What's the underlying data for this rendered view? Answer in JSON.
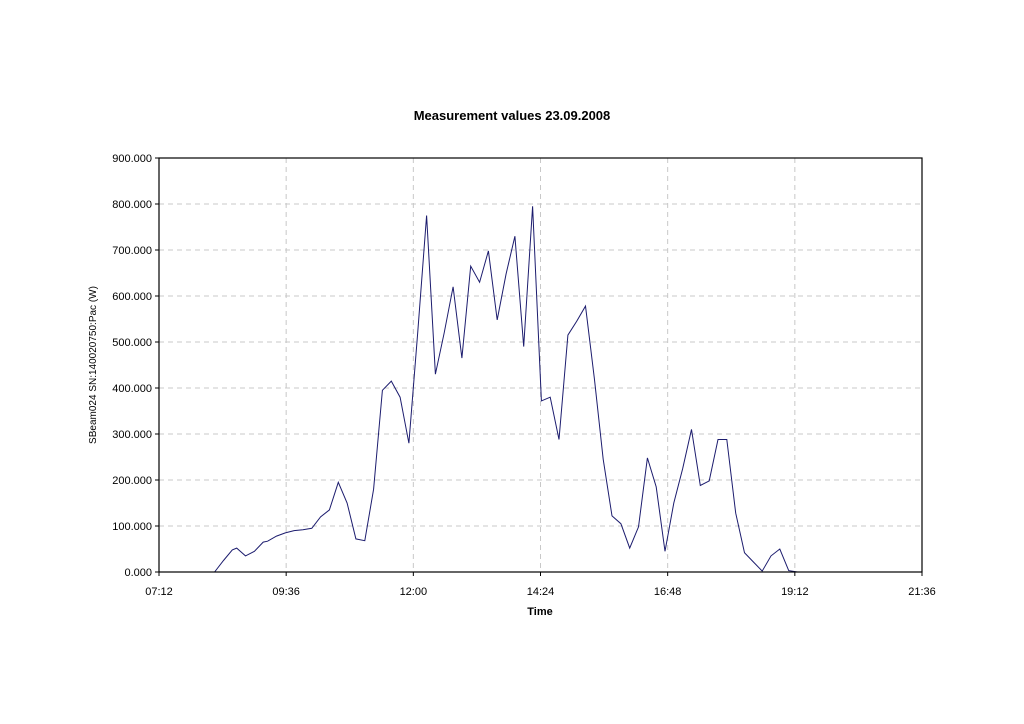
{
  "chart_data": {
    "type": "line",
    "title": "Measurement values 23.09.2008",
    "xlabel": "Time",
    "ylabel": "SBeam024 SN:140020750:Pac (W)",
    "xlim": [
      "07:12",
      "21:36"
    ],
    "ylim": [
      0,
      900
    ],
    "x_ticks": [
      "07:12",
      "09:36",
      "12:00",
      "14:24",
      "16:48",
      "19:12",
      "21:36"
    ],
    "y_ticks": [
      "0.000",
      "100.000",
      "200.000",
      "300.000",
      "400.000",
      "500.000",
      "600.000",
      "700.000",
      "800.000",
      "900.000"
    ],
    "grid": true,
    "series_color": "#1c1c6e",
    "series": [
      {
        "x": [
          "08:15",
          "08:25",
          "08:35",
          "08:40",
          "08:50",
          "09:00",
          "09:10",
          "09:15",
          "09:25",
          "09:35",
          "09:45",
          "09:55",
          "10:05",
          "10:15",
          "10:25",
          "10:35",
          "10:45",
          "10:55",
          "11:05",
          "11:15",
          "11:25",
          "11:35",
          "11:45",
          "11:55",
          "12:05",
          "12:15",
          "12:25",
          "12:35",
          "12:45",
          "12:55",
          "13:05",
          "13:15",
          "13:25",
          "13:35",
          "13:45",
          "13:55",
          "14:05",
          "14:15",
          "14:25",
          "14:35",
          "14:45",
          "14:55",
          "15:05",
          "15:15",
          "15:25",
          "15:35",
          "15:45",
          "15:55",
          "16:05",
          "16:15",
          "16:25",
          "16:35",
          "16:45",
          "16:55",
          "17:05",
          "17:15",
          "17:25",
          "17:35",
          "17:45",
          "17:55",
          "18:05",
          "18:15",
          "18:25",
          "18:35",
          "18:45",
          "18:55",
          "19:05",
          "19:15",
          "19:25"
        ],
        "values": [
          0,
          25,
          48,
          52,
          35,
          45,
          65,
          67,
          78,
          85,
          90,
          92,
          95,
          120,
          135,
          195,
          150,
          72,
          68,
          180,
          395,
          415,
          380,
          280,
          520,
          775,
          430,
          520,
          620,
          465,
          665,
          630,
          698,
          548,
          648,
          730,
          490,
          795,
          372,
          380,
          288,
          515,
          545,
          578,
          420,
          245,
          122,
          105,
          52,
          98,
          248,
          185,
          45,
          150,
          225,
          310,
          188,
          198,
          288,
          288,
          128,
          42,
          22,
          2,
          35,
          50,
          3,
          0,
          0
        ]
      }
    ]
  }
}
